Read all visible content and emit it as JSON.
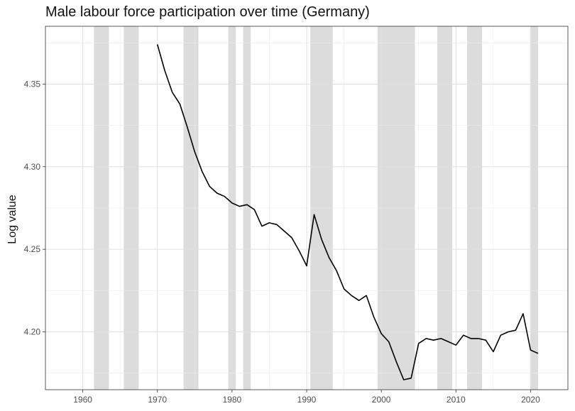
{
  "chart_data": {
    "type": "line",
    "title": "Male labour force participation over time (Germany)",
    "xlabel": "",
    "ylabel": "Log value",
    "xlim": [
      1955,
      2025
    ],
    "ylim": [
      4.165,
      4.385
    ],
    "x_ticks": [
      1960,
      1970,
      1980,
      1990,
      2000,
      2010,
      2020
    ],
    "x_tick_labels": [
      "1960",
      "1970",
      "1980",
      "1990",
      "2000",
      "2010",
      "2020"
    ],
    "y_ticks": [
      4.2,
      4.25,
      4.3,
      4.35
    ],
    "y_tick_labels": [
      "4.20",
      "4.25",
      "4.30",
      "4.35"
    ],
    "grid": true,
    "line_color": "#000000",
    "shade_color": "#dcdcdc",
    "shaded_periods": [
      [
        1961.5,
        1963.5
      ],
      [
        1965.5,
        1967.5
      ],
      [
        1973.5,
        1975.5
      ],
      [
        1979.5,
        1980.5
      ],
      [
        1981.5,
        1982.5
      ],
      [
        1990.5,
        1993.5
      ],
      [
        1999.5,
        2004.5
      ],
      [
        2007.5,
        2009.5
      ],
      [
        2011.5,
        2013.5
      ],
      [
        2020,
        2021
      ]
    ],
    "series": [
      {
        "x": [
          1970,
          1971,
          1972,
          1973,
          1974,
          1975,
          1976,
          1977,
          1978,
          1979,
          1980,
          1981,
          1982,
          1983,
          1984,
          1985,
          1986,
          1987,
          1988,
          1989,
          1990,
          1991,
          1992,
          1993,
          1994,
          1995,
          1996,
          1997,
          1998,
          1999,
          2000,
          2001,
          2002,
          2003,
          2004,
          2005,
          2006,
          2007,
          2008,
          2009,
          2010,
          2011,
          2012,
          2013,
          2014,
          2015,
          2016,
          2017,
          2018,
          2019,
          2020,
          2021
        ],
        "values": [
          4.374,
          4.358,
          4.345,
          4.338,
          4.324,
          4.309,
          4.297,
          4.288,
          4.284,
          4.282,
          4.278,
          4.276,
          4.277,
          4.274,
          4.264,
          4.266,
          4.265,
          4.261,
          4.257,
          4.249,
          4.24,
          4.271,
          4.256,
          4.245,
          4.237,
          4.226,
          4.222,
          4.219,
          4.222,
          4.209,
          4.199,
          4.194,
          4.182,
          4.171,
          4.172,
          4.193,
          4.196,
          4.195,
          4.196,
          4.194,
          4.192,
          4.198,
          4.196,
          4.196,
          4.195,
          4.188,
          4.198,
          4.2,
          4.201,
          4.211,
          4.189,
          4.187
        ]
      }
    ]
  }
}
